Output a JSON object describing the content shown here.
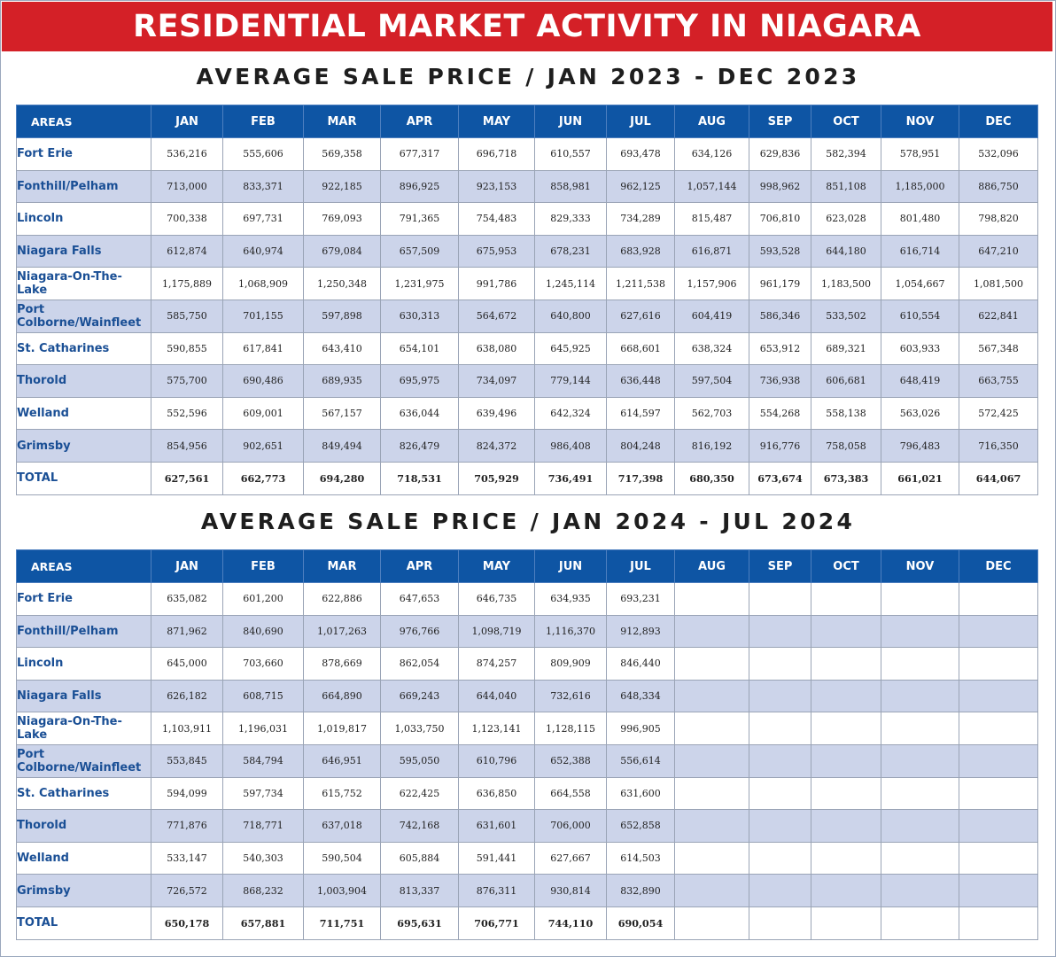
{
  "title": "RESIDENTIAL MARKET ACTIVITY IN NIAGARA",
  "colors": {
    "banner": "#d42027",
    "header": "#0e55a4",
    "area_text": "#1a4f95",
    "stripe": "#ccd4ea"
  },
  "chart_data": [
    {
      "type": "table",
      "title": "AVERAGE SALE PRICE / JAN 2023 - DEC 2023",
      "columns": [
        "AREAS",
        "JAN",
        "FEB",
        "MAR",
        "APR",
        "MAY",
        "JUN",
        "JUL",
        "AUG",
        "SEP",
        "OCT",
        "NOV",
        "DEC"
      ],
      "rows": [
        {
          "area": "Fort Erie",
          "values": [
            "536,216",
            "555,606",
            "569,358",
            "677,317",
            "696,718",
            "610,557",
            "693,478",
            "634,126",
            "629,836",
            "582,394",
            "578,951",
            "532,096"
          ]
        },
        {
          "area": "Fonthill/Pelham",
          "values": [
            "713,000",
            "833,371",
            "922,185",
            "896,925",
            "923,153",
            "858,981",
            "962,125",
            "1,057,144",
            "998,962",
            "851,108",
            "1,185,000",
            "886,750"
          ]
        },
        {
          "area": "Lincoln",
          "values": [
            "700,338",
            "697,731",
            "769,093",
            "791,365",
            "754,483",
            "829,333",
            "734,289",
            "815,487",
            "706,810",
            "623,028",
            "801,480",
            "798,820"
          ]
        },
        {
          "area": "Niagara Falls",
          "values": [
            "612,874",
            "640,974",
            "679,084",
            "657,509",
            "675,953",
            "678,231",
            "683,928",
            "616,871",
            "593,528",
            "644,180",
            "616,714",
            "647,210"
          ]
        },
        {
          "area": "Niagara-On-The-Lake",
          "values": [
            "1,175,889",
            "1,068,909",
            "1,250,348",
            "1,231,975",
            "991,786",
            "1,245,114",
            "1,211,538",
            "1,157,906",
            "961,179",
            "1,183,500",
            "1,054,667",
            "1,081,500"
          ]
        },
        {
          "area": "Port Colborne/Wainfleet",
          "values": [
            "585,750",
            "701,155",
            "597,898",
            "630,313",
            "564,672",
            "640,800",
            "627,616",
            "604,419",
            "586,346",
            "533,502",
            "610,554",
            "622,841"
          ]
        },
        {
          "area": "St. Catharines",
          "values": [
            "590,855",
            "617,841",
            "643,410",
            "654,101",
            "638,080",
            "645,925",
            "668,601",
            "638,324",
            "653,912",
            "689,321",
            "603,933",
            "567,348"
          ]
        },
        {
          "area": "Thorold",
          "values": [
            "575,700",
            "690,486",
            "689,935",
            "695,975",
            "734,097",
            "779,144",
            "636,448",
            "597,504",
            "736,938",
            "606,681",
            "648,419",
            "663,755"
          ]
        },
        {
          "area": "Welland",
          "values": [
            "552,596",
            "609,001",
            "567,157",
            "636,044",
            "639,496",
            "642,324",
            "614,597",
            "562,703",
            "554,268",
            "558,138",
            "563,026",
            "572,425"
          ]
        },
        {
          "area": "Grimsby",
          "values": [
            "854,956",
            "902,651",
            "849,494",
            "826,479",
            "824,372",
            "986,408",
            "804,248",
            "816,192",
            "916,776",
            "758,058",
            "796,483",
            "716,350"
          ]
        },
        {
          "area": "TOTAL",
          "values": [
            "627,561",
            "662,773",
            "694,280",
            "718,531",
            "705,929",
            "736,491",
            "717,398",
            "680,350",
            "673,674",
            "673,383",
            "661,021",
            "644,067"
          ]
        }
      ]
    },
    {
      "type": "table",
      "title": "AVERAGE SALE PRICE / JAN 2024 - JUL 2024",
      "columns": [
        "AREAS",
        "JAN",
        "FEB",
        "MAR",
        "APR",
        "MAY",
        "JUN",
        "JUL",
        "AUG",
        "SEP",
        "OCT",
        "NOV",
        "DEC"
      ],
      "rows": [
        {
          "area": "Fort Erie",
          "values": [
            "635,082",
            "601,200",
            "622,886",
            "647,653",
            "646,735",
            "634,935",
            "693,231",
            "",
            "",
            "",
            "",
            ""
          ]
        },
        {
          "area": "Fonthill/Pelham",
          "values": [
            "871,962",
            "840,690",
            "1,017,263",
            "976,766",
            "1,098,719",
            "1,116,370",
            "912,893",
            "",
            "",
            "",
            "",
            ""
          ]
        },
        {
          "area": "Lincoln",
          "values": [
            "645,000",
            "703,660",
            "878,669",
            "862,054",
            "874,257",
            "809,909",
            "846,440",
            "",
            "",
            "",
            "",
            ""
          ]
        },
        {
          "area": "Niagara Falls",
          "values": [
            "626,182",
            "608,715",
            "664,890",
            "669,243",
            "644,040",
            "732,616",
            "648,334",
            "",
            "",
            "",
            "",
            ""
          ]
        },
        {
          "area": "Niagara-On-The-Lake",
          "values": [
            "1,103,911",
            "1,196,031",
            "1,019,817",
            "1,033,750",
            "1,123,141",
            "1,128,115",
            "996,905",
            "",
            "",
            "",
            "",
            ""
          ]
        },
        {
          "area": "Port Colborne/Wainfleet",
          "values": [
            "553,845",
            "584,794",
            "646,951",
            "595,050",
            "610,796",
            "652,388",
            "556,614",
            "",
            "",
            "",
            "",
            ""
          ]
        },
        {
          "area": "St. Catharines",
          "values": [
            "594,099",
            "597,734",
            "615,752",
            "622,425",
            "636,850",
            "664,558",
            "631,600",
            "",
            "",
            "",
            "",
            ""
          ]
        },
        {
          "area": "Thorold",
          "values": [
            "771,876",
            "718,771",
            "637,018",
            "742,168",
            "631,601",
            "706,000",
            "652,858",
            "",
            "",
            "",
            "",
            ""
          ]
        },
        {
          "area": "Welland",
          "values": [
            "533,147",
            "540,303",
            "590,504",
            "605,884",
            "591,441",
            "627,667",
            "614,503",
            "",
            "",
            "",
            "",
            ""
          ]
        },
        {
          "area": "Grimsby",
          "values": [
            "726,572",
            "868,232",
            "1,003,904",
            "813,337",
            "876,311",
            "930,814",
            "832,890",
            "",
            "",
            "",
            "",
            ""
          ]
        },
        {
          "area": "TOTAL",
          "values": [
            "650,178",
            "657,881",
            "711,751",
            "695,631",
            "706,771",
            "744,110",
            "690,054",
            "",
            "",
            "",
            "",
            ""
          ]
        }
      ]
    }
  ]
}
